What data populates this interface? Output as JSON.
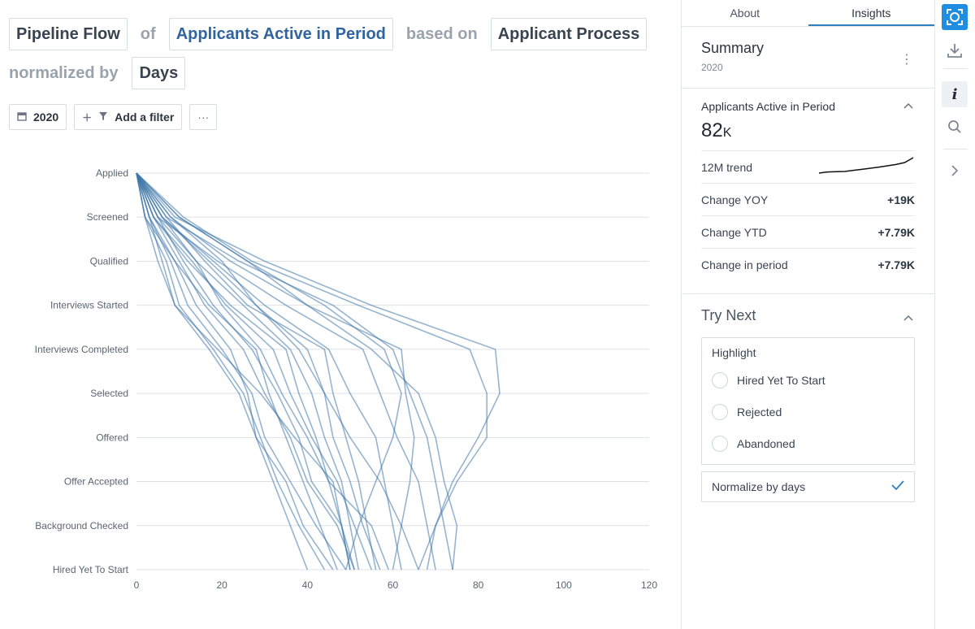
{
  "query": {
    "chip1": "Pipeline Flow",
    "of": "of",
    "metric": "Applicants Active in Period",
    "based_on": "based on",
    "chip3": "Applicant Process",
    "normalized_by": "normalized by",
    "chip4": "Days"
  },
  "filters": {
    "year": "2020",
    "add_filter": "Add a filter",
    "more": "···"
  },
  "tabs": [
    "About",
    "Insights"
  ],
  "summary": {
    "title": "Summary",
    "year": "2020"
  },
  "metric_card": {
    "name": "Applicants Active in Period",
    "value": "82",
    "unit": "K",
    "trend_label": "12M trend",
    "trend": [
      0.05,
      0.12,
      0.14,
      0.15,
      0.22,
      0.28,
      0.35,
      0.42,
      0.5,
      0.58,
      0.7,
      1.0
    ],
    "rows": [
      {
        "label": "Change YOY",
        "value": "+19K"
      },
      {
        "label": "Change YTD",
        "value": "+7.79K"
      },
      {
        "label": "Change in period",
        "value": "+7.79K"
      }
    ]
  },
  "try_next": {
    "title": "Try Next",
    "highlight_title": "Highlight",
    "options": [
      "Hired Yet To Start",
      "Rejected",
      "Abandoned"
    ],
    "normalize_label": "Normalize by days"
  },
  "icons": {
    "rail": [
      "capture-icon",
      "download-icon",
      "info-icon",
      "search-icon",
      "chevron-right-icon"
    ]
  },
  "chart_data": {
    "type": "line",
    "x_ticks": [
      0,
      20,
      40,
      60,
      80,
      100,
      120
    ],
    "xlim": [
      0,
      120
    ],
    "stages": [
      "Applied",
      "Screened",
      "Qualified",
      "Interviews Started",
      "Interviews Completed",
      "Selected",
      "Offered",
      "Offer Accepted",
      "Background Checked",
      "Hired Yet To Start"
    ],
    "line_color": "#3f76a8",
    "series": [
      {
        "days": [
          0,
          2,
          7,
          10,
          18,
          25,
          29,
          33,
          38,
          44
        ]
      },
      {
        "days": [
          0,
          3,
          8,
          12,
          20,
          27,
          30,
          36,
          42,
          49
        ]
      },
      {
        "days": [
          0,
          4,
          10,
          16,
          25,
          30,
          36,
          40,
          47,
          51
        ]
      },
      {
        "days": [
          0,
          5,
          11,
          18,
          27,
          33,
          38,
          41,
          48,
          51
        ]
      },
      {
        "days": [
          0,
          2,
          9,
          14,
          22,
          26,
          28,
          35,
          39,
          46
        ]
      },
      {
        "days": [
          0,
          6,
          14,
          20,
          29,
          34,
          40,
          45,
          55,
          59
        ]
      },
      {
        "days": [
          0,
          3,
          6,
          9,
          17,
          24,
          28,
          32,
          36,
          40
        ]
      },
      {
        "days": [
          0,
          8,
          20,
          28,
          38,
          44,
          50,
          57,
          62,
          66
        ]
      },
      {
        "days": [
          0,
          10,
          26,
          40,
          55,
          66,
          70,
          72,
          75,
          74
        ]
      },
      {
        "days": [
          0,
          7,
          24,
          46,
          60,
          64,
          68,
          70,
          72,
          74
        ]
      },
      {
        "days": [
          0,
          9,
          30,
          55,
          84,
          85,
          80,
          74,
          70,
          66
        ]
      },
      {
        "days": [
          0,
          11,
          27,
          52,
          78,
          82,
          82,
          75,
          70,
          68
        ]
      },
      {
        "days": [
          0,
          6,
          18,
          30,
          45,
          50,
          56,
          58,
          60,
          62
        ]
      },
      {
        "days": [
          0,
          4,
          12,
          22,
          35,
          38,
          42,
          45,
          48,
          50
        ]
      },
      {
        "days": [
          0,
          2,
          5,
          9,
          19,
          29,
          37,
          46,
          48,
          50
        ]
      },
      {
        "days": [
          0,
          5,
          14,
          25,
          36,
          41,
          44,
          48,
          50,
          52
        ]
      },
      {
        "days": [
          0,
          3,
          9,
          17,
          28,
          31,
          35,
          39,
          43,
          47
        ]
      },
      {
        "days": [
          0,
          7,
          16,
          26,
          44,
          46,
          49,
          52,
          54,
          56
        ]
      },
      {
        "days": [
          0,
          8,
          22,
          40,
          62,
          63,
          65,
          64,
          62,
          60
        ]
      },
      {
        "days": [
          0,
          4,
          13,
          21,
          32,
          36,
          41,
          47,
          51,
          55
        ]
      },
      {
        "days": [
          0,
          10,
          26,
          44,
          58,
          62,
          60,
          56,
          52,
          49
        ]
      },
      {
        "days": [
          0,
          6,
          17,
          28,
          40,
          44,
          46,
          50,
          53,
          57
        ]
      },
      {
        "days": [
          0,
          5,
          19,
          35,
          53,
          57,
          61,
          66,
          68,
          70
        ]
      }
    ]
  }
}
